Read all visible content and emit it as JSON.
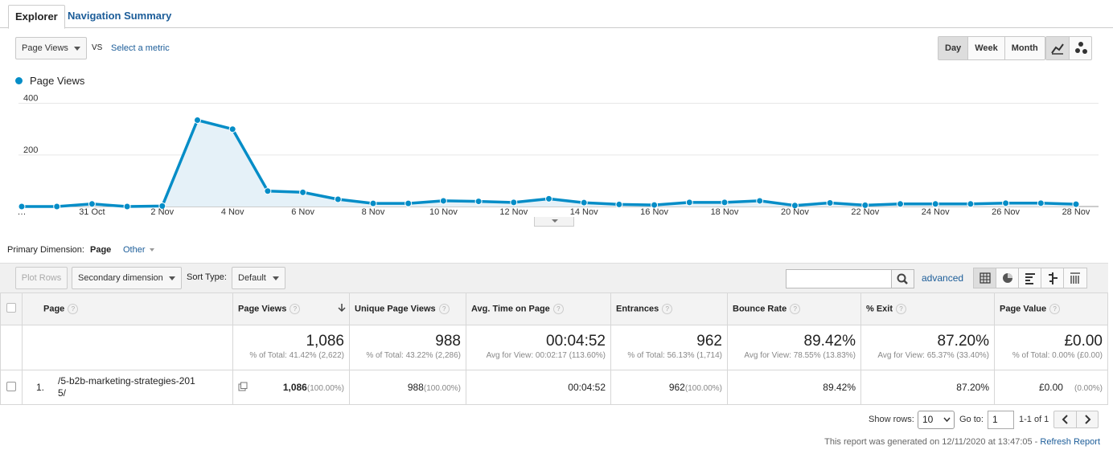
{
  "tabs": {
    "explorer": "Explorer",
    "nav_summary": "Navigation Summary"
  },
  "controls": {
    "metric_select": "Page Views",
    "vs": "VS",
    "select_metric": "Select a metric",
    "periods": [
      "Day",
      "Week",
      "Month"
    ],
    "active_period": "Day"
  },
  "legend": {
    "label": "Page Views",
    "color": "#058dc7"
  },
  "chart_data": {
    "type": "area",
    "series": [
      {
        "name": "Page Views",
        "color": "#058dc7"
      }
    ],
    "x": [
      "29 Oct",
      "30 Oct",
      "31 Oct",
      "1 Nov",
      "2 Nov",
      "3 Nov",
      "4 Nov",
      "5 Nov",
      "6 Nov",
      "7 Nov",
      "8 Nov",
      "9 Nov",
      "10 Nov",
      "11 Nov",
      "12 Nov",
      "13 Nov",
      "14 Nov",
      "15 Nov",
      "16 Nov",
      "17 Nov",
      "18 Nov",
      "19 Nov",
      "20 Nov",
      "21 Nov",
      "22 Nov",
      "23 Nov",
      "24 Nov",
      "25 Nov",
      "26 Nov",
      "27 Nov",
      "28 Nov"
    ],
    "values": [
      0,
      0,
      10,
      0,
      2,
      335,
      300,
      60,
      55,
      28,
      12,
      12,
      22,
      20,
      16,
      30,
      15,
      8,
      6,
      16,
      16,
      22,
      4,
      14,
      5,
      10,
      10,
      10,
      13,
      13,
      9
    ],
    "ylim": [
      0,
      430
    ],
    "yticks": [
      "200",
      "400"
    ],
    "xticks": [
      "…",
      "31 Oct",
      "2 Nov",
      "4 Nov",
      "6 Nov",
      "8 Nov",
      "10 Nov",
      "12 Nov",
      "14 Nov",
      "16 Nov",
      "18 Nov",
      "20 Nov",
      "22 Nov",
      "24 Nov",
      "26 Nov",
      "28 Nov"
    ],
    "grid": true
  },
  "dimension": {
    "label": "Primary Dimension:",
    "page": "Page",
    "other": "Other"
  },
  "toolbar": {
    "plot_rows": "Plot Rows",
    "secondary": "Secondary dimension",
    "sort_type": "Sort Type:",
    "sort_default": "Default",
    "advanced": "advanced"
  },
  "table": {
    "headers": {
      "page": "Page",
      "page_views": "Page Views",
      "unique": "Unique Page Views",
      "avg_time": "Avg. Time on Page",
      "entrances": "Entrances",
      "bounce": "Bounce Rate",
      "exit": "% Exit",
      "value": "Page Value"
    },
    "totals": {
      "page_views": "1,086",
      "page_views_sub": "% of Total: 41.42% (2,622)",
      "unique": "988",
      "unique_sub": "% of Total: 43.22% (2,286)",
      "avg_time": "00:04:52",
      "avg_time_sub": "Avg for View: 00:02:17 (113.60%)",
      "entrances": "962",
      "entrances_sub": "% of Total: 56.13% (1,714)",
      "bounce": "89.42%",
      "bounce_sub": "Avg for View: 78.55% (13.83%)",
      "exit": "87.20%",
      "exit_sub": "Avg for View: 65.37% (33.40%)",
      "value": "£0.00",
      "value_sub": "% of Total: 0.00% (£0.00)"
    },
    "rows": [
      {
        "num": "1.",
        "page_line1": "/5-b2b-marketing-strategies-201",
        "page_line2": "5/",
        "page_views": "1,086",
        "page_views_pct": "(100.00%)",
        "unique": "988",
        "unique_pct": "(100.00%)",
        "avg_time": "00:04:52",
        "entrances": "962",
        "entrances_pct": "(100.00%)",
        "bounce": "89.42%",
        "exit": "87.20%",
        "value": "£0.00",
        "value_pct": "(0.00%)"
      }
    ]
  },
  "footer": {
    "show_rows": "Show rows:",
    "rows_value": "10",
    "goto": "Go to:",
    "goto_value": "1",
    "range": "1-1 of 1",
    "generated": "This report was generated on 12/11/2020 at 13:47:05 - ",
    "refresh": "Refresh Report"
  }
}
